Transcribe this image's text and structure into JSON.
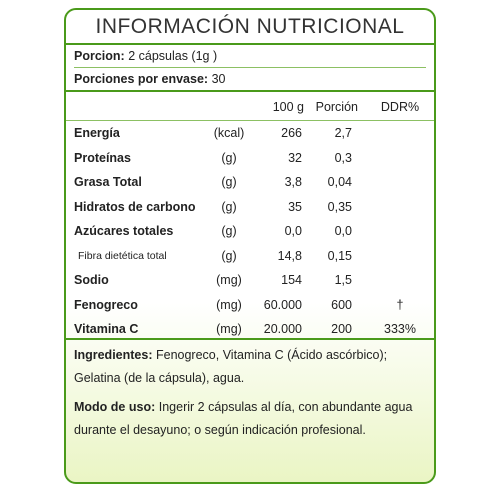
{
  "title": "INFORMACIÓN  NUTRICIONAL",
  "serving": {
    "portion_label": "Porcion:",
    "portion_value": "2 cápsulas (1g )",
    "per_package_label": "Porciones por envase:",
    "per_package_value": "30"
  },
  "table": {
    "headers": {
      "per100": "100 g",
      "portion": "Porción",
      "ddr": "DDR%"
    },
    "rows": [
      {
        "name": "Energía",
        "unit": "(kcal)",
        "per100": "266",
        "portion": "2,7",
        "ddr": "",
        "bold": true
      },
      {
        "name": "Proteínas",
        "unit": "(g)",
        "per100": "32",
        "portion": "0,3",
        "ddr": "",
        "bold": true
      },
      {
        "name": "Grasa Total",
        "unit": "(g)",
        "per100": "3,8",
        "portion": "0,04",
        "ddr": "",
        "bold": true
      },
      {
        "name": "Hidratos de carbono",
        "unit": "(g)",
        "per100": "35",
        "portion": "0,35",
        "ddr": "",
        "bold": true
      },
      {
        "name": "Azúcares totales",
        "unit": "(g)",
        "per100": "0,0",
        "portion": "0,0",
        "ddr": "",
        "bold": true
      },
      {
        "name": "Fibra dietética total",
        "unit": "(g)",
        "per100": "14,8",
        "portion": "0,15",
        "ddr": "",
        "bold": false
      },
      {
        "name": "Sodio",
        "unit": "(mg)",
        "per100": "154",
        "portion": "1,5",
        "ddr": "",
        "bold": true
      },
      {
        "name": "Fenogreco",
        "unit": "(mg)",
        "per100": "60.000",
        "portion": "600",
        "ddr": "†",
        "bold": true
      },
      {
        "name": "Vitamina C",
        "unit": "(mg)",
        "per100": "20.000",
        "portion": "200",
        "ddr": "333%",
        "bold": true
      }
    ]
  },
  "ingredients": {
    "label": "Ingredientes:",
    "text": "Fenogreco, Vitamina C (Ácido ascórbico); Gelatina (de la cápsula), agua."
  },
  "usage": {
    "label": "Modo de uso:",
    "text": "Ingerir 2 cápsulas al día, con abundante agua durante el desayuno; o según indicación profesional."
  },
  "colors": {
    "border": "#4a9a1a",
    "divider": "#8cc063",
    "gradient_bottom": "#eaf5c4"
  }
}
